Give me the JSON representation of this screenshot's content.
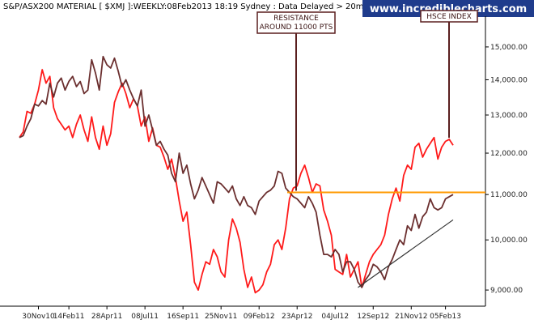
{
  "header": {
    "title": "S&P/ASX200 MATERIAL [ $XMJ ]:WEEKLY:08Feb2013 18:19 Sydney : Data Delayed > 20mins",
    "brand": "www.incrediblecharts.com"
  },
  "chart_data": {
    "type": "line",
    "grid": false,
    "y_scale": "log",
    "ylim": [
      8700,
      16000
    ],
    "y_ticks": [
      {
        "value": 9000,
        "label": "9,000.00"
      },
      {
        "value": 10000,
        "label": "10,000.00"
      },
      {
        "value": 11000,
        "label": "11,000.00"
      },
      {
        "value": 12000,
        "label": "12,000.00"
      },
      {
        "value": 13000,
        "label": "13,000.00"
      },
      {
        "value": 14000,
        "label": "14,000.00"
      },
      {
        "value": 15000,
        "label": "15,000.00"
      }
    ],
    "x_ticks": [
      {
        "index": 5,
        "label": "30Nov10"
      },
      {
        "index": 13,
        "label": "14Feb11"
      },
      {
        "index": 23,
        "label": "28Apr11"
      },
      {
        "index": 33,
        "label": "08Jul11"
      },
      {
        "index": 43,
        "label": "16Sep11"
      },
      {
        "index": 53,
        "label": "25Nov11"
      },
      {
        "index": 63,
        "label": "09Feb12"
      },
      {
        "index": 73,
        "label": "23Apr12"
      },
      {
        "index": 83,
        "label": "04Jul12"
      },
      {
        "index": 93,
        "label": "12Sep12"
      },
      {
        "index": 103,
        "label": "21Nov12"
      },
      {
        "index": 112,
        "label": "05Feb13"
      }
    ],
    "series": [
      {
        "color": "#ff1a1a",
        "values": [
          12400,
          12550,
          13100,
          13050,
          13300,
          13700,
          14300,
          13900,
          14100,
          13200,
          12900,
          12750,
          12600,
          12700,
          12400,
          12750,
          13000,
          12600,
          12300,
          12950,
          12400,
          12100,
          12700,
          12200,
          12500,
          13350,
          13650,
          13900,
          13600,
          13200,
          13450,
          13250,
          12700,
          12950,
          12300,
          12650,
          12200,
          12150,
          11900,
          11600,
          11850,
          11400,
          10850,
          10400,
          10600,
          9900,
          9150,
          9000,
          9300,
          9550,
          9500,
          9800,
          9650,
          9350,
          9250,
          10000,
          10450,
          10250,
          9950,
          9400,
          9050,
          9250,
          8950,
          9000,
          9100,
          9350,
          9500,
          9900,
          10000,
          9800,
          10250,
          10900,
          11150,
          11200,
          11500,
          11700,
          11400,
          11050,
          11250,
          11200,
          10650,
          10400,
          10100,
          9400,
          9350,
          9300,
          9700,
          9250,
          9400,
          9550,
          9050,
          9300,
          9550,
          9700,
          9800,
          9900,
          10100,
          10550,
          10900,
          11150,
          10850,
          11450,
          11700,
          11600,
          12150,
          12250,
          11900,
          12100,
          12250,
          12400,
          11850,
          12150,
          12300,
          12350,
          12200
        ]
      },
      {
        "color": "#6b2f2f",
        "values": [
          12400,
          12450,
          12700,
          12900,
          13300,
          13250,
          13400,
          13300,
          13900,
          13500,
          13900,
          14050,
          13700,
          13950,
          14100,
          13800,
          13950,
          13600,
          13700,
          14600,
          14200,
          13700,
          14700,
          14450,
          14350,
          14650,
          14250,
          13800,
          14000,
          13700,
          13450,
          13250,
          13700,
          12700,
          13000,
          12600,
          12200,
          12300,
          12100,
          11950,
          11500,
          11300,
          12000,
          11500,
          11700,
          11250,
          10900,
          11100,
          11400,
          11200,
          11000,
          10800,
          11300,
          11250,
          11150,
          11050,
          11200,
          10900,
          10750,
          10950,
          10750,
          10700,
          10550,
          10850,
          10950,
          11050,
          11100,
          11200,
          11550,
          11500,
          11150,
          11050,
          10950,
          10900,
          10800,
          10700,
          10950,
          10800,
          10600,
          10100,
          9700,
          9700,
          9650,
          9800,
          9700,
          9350,
          9550,
          9550,
          9400,
          9150,
          9050,
          9200,
          9300,
          9500,
          9450,
          9350,
          9200,
          9450,
          9600,
          9800,
          10000,
          9900,
          10300,
          10200,
          10550,
          10250,
          10500,
          10600,
          10900,
          10700,
          10650,
          10700,
          10900,
          10950,
          11000
        ]
      }
    ],
    "horizontal_lines": [
      {
        "value": 11050,
        "color": "#ff9900"
      }
    ],
    "trendlines": [
      {
        "x0": 89,
        "y0": 9050,
        "x1": 114,
        "y1": 10430,
        "color": "#333333"
      }
    ],
    "annotations": [
      {
        "text_lines": [
          "RESISTANCE",
          "AROUND 11000 PTS"
        ],
        "target_index": 73,
        "target_value": 11050,
        "color": "#5a1f1f"
      },
      {
        "text_lines": [
          "HSCE INDEX"
        ],
        "target_index": 115,
        "target_value": 12350,
        "color": "#5a1f1f"
      }
    ]
  }
}
